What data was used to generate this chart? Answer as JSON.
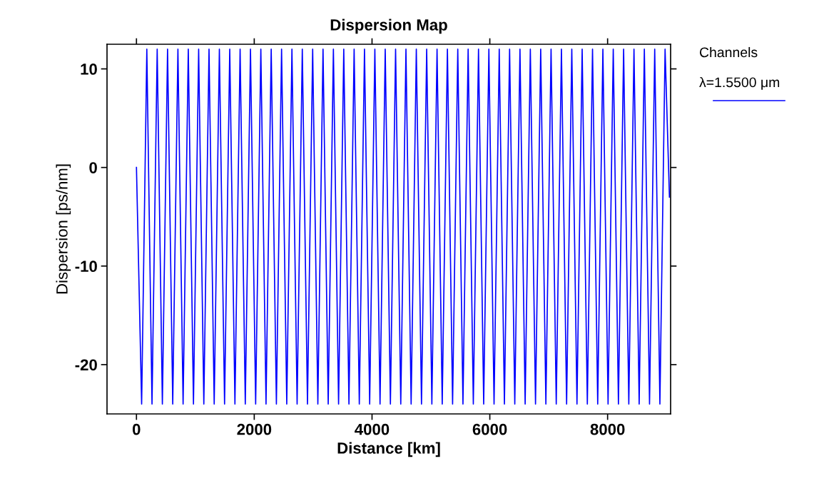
{
  "chart_data": {
    "type": "line",
    "title": "Dispersion Map",
    "xlabel": "Distance [km]",
    "ylabel": "Dispersion [ps/nm]",
    "legend_title": "Channels",
    "legend": "top right",
    "x": [
      0,
      88,
      176,
      264,
      352,
      440,
      528,
      616,
      704,
      792,
      880,
      968,
      1056,
      1144,
      1232,
      1320,
      1408,
      1496,
      1584,
      1672,
      1760,
      1848,
      1936,
      2024,
      2112,
      2200,
      2288,
      2376,
      2464,
      2552,
      2640,
      2728,
      2816,
      2904,
      2992,
      3080,
      3168,
      3256,
      3344,
      3432,
      3520,
      3608,
      3696,
      3784,
      3872,
      3960,
      4048,
      4136,
      4224,
      4312,
      4400,
      4488,
      4576,
      4664,
      4752,
      4840,
      4928,
      5016,
      5104,
      5192,
      5280,
      5368,
      5456,
      5544,
      5632,
      5720,
      5808,
      5896,
      5984,
      6072,
      6160,
      6248,
      6336,
      6424,
      6512,
      6600,
      6688,
      6776,
      6864,
      6952,
      7040,
      7128,
      7216,
      7304,
      7392,
      7480,
      7568,
      7656,
      7744,
      7832,
      7920,
      8008,
      8096,
      8184,
      8272,
      8360,
      8448,
      8536,
      8624,
      8712,
      8800,
      8888,
      8976,
      9050
    ],
    "series": [
      {
        "name": "λ=1.5500 μm",
        "color": "#0000ff",
        "values": [
          0,
          -24,
          12,
          -24,
          12,
          -24,
          12,
          -24,
          12,
          -24,
          12,
          -24,
          12,
          -24,
          12,
          -24,
          12,
          -24,
          12,
          -24,
          12,
          -24,
          12,
          -24,
          12,
          -24,
          12,
          -24,
          12,
          -24,
          12,
          -24,
          12,
          -24,
          12,
          -24,
          12,
          -24,
          12,
          -24,
          12,
          -24,
          12,
          -24,
          12,
          -24,
          12,
          -24,
          12,
          -24,
          12,
          -24,
          12,
          -24,
          12,
          -24,
          12,
          -24,
          12,
          -24,
          12,
          -24,
          12,
          -24,
          12,
          -24,
          12,
          -24,
          12,
          -24,
          12,
          -24,
          12,
          -24,
          12,
          -24,
          12,
          -24,
          12,
          -24,
          12,
          -24,
          12,
          -24,
          12,
          -24,
          12,
          -24,
          12,
          -24,
          12,
          -24,
          12,
          -24,
          12,
          -24,
          12,
          -24,
          12,
          -24,
          12,
          -24,
          12,
          -3
        ]
      }
    ],
    "xlim": [
      -500,
      9070
    ],
    "ylim": [
      -25,
      12.5
    ],
    "xticks": [
      0,
      2000,
      4000,
      6000,
      8000
    ],
    "yticks": [
      -20,
      -10,
      0,
      10
    ],
    "grid": false,
    "marker": "none",
    "line_style": "solid"
  }
}
